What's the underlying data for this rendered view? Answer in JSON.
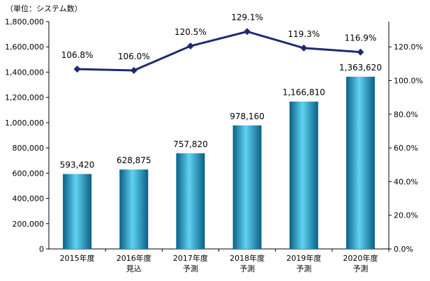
{
  "chart_data": {
    "type": "bar",
    "unit_label": "（単位：システム数）",
    "categories": [
      [
        "2015年度"
      ],
      [
        "2016年度",
        "見込"
      ],
      [
        "2017年度",
        "予測"
      ],
      [
        "2018年度",
        "予測"
      ],
      [
        "2019年度",
        "予測"
      ],
      [
        "2020年度",
        "予測"
      ]
    ],
    "series": [
      {
        "type": "bar",
        "axis": "left",
        "values": [
          593420,
          628875,
          757820,
          978160,
          1166810,
          1363620
        ],
        "labels": [
          "593,420",
          "628,875",
          "757,820",
          "978,160",
          "1,166,810",
          "1,363,620"
        ]
      },
      {
        "type": "line",
        "axis": "right",
        "values": [
          106.8,
          106.0,
          120.5,
          129.1,
          119.3,
          116.9
        ],
        "labels": [
          "106.8%",
          "106.0%",
          "120.5%",
          "129.1%",
          "119.3%",
          "116.9%"
        ]
      }
    ],
    "y_left": {
      "min": 0,
      "max": 1800000,
      "ticks": [
        0,
        200000,
        400000,
        600000,
        800000,
        1000000,
        1200000,
        1400000,
        1600000,
        1800000
      ],
      "tick_labels": [
        "0",
        "200,000",
        "400,000",
        "600,000",
        "800,000",
        "1,000,000",
        "1,200,000",
        "1,400,000",
        "1,600,000",
        "1,800,000"
      ]
    },
    "y_right": {
      "min": 0,
      "max": 135,
      "ticks": [
        0,
        20,
        40,
        60,
        80,
        100,
        120
      ],
      "tick_labels": [
        "0.0%",
        "20.0%",
        "40.0%",
        "60.0%",
        "80.0%",
        "100.0%",
        "120.0%"
      ]
    },
    "grid": false,
    "colors": {
      "bar_dark": "#0a5f86",
      "bar_light": "#5fd3f2",
      "line": "#1f2a6e",
      "axis": "#000000"
    }
  }
}
